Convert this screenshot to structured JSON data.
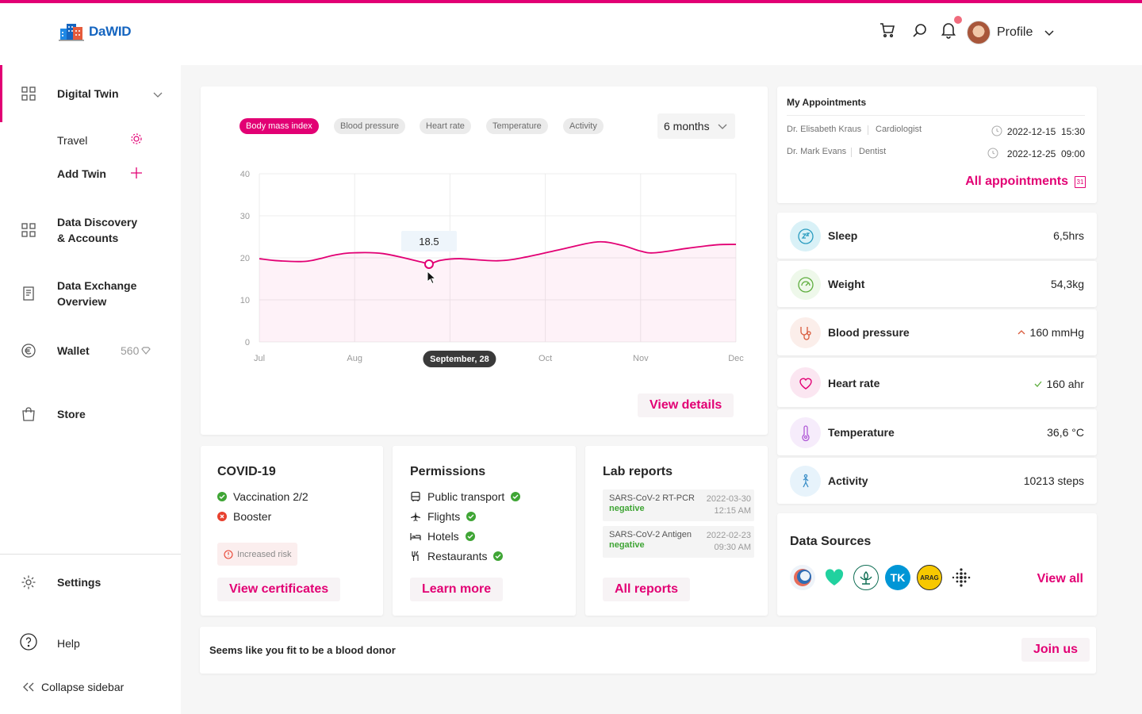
{
  "brand": {
    "logo_text": "DaWID",
    "accent": "#e20074"
  },
  "header": {
    "icons": [
      "cart-icon",
      "search-icon",
      "bell-icon"
    ],
    "profile_label": "Profile"
  },
  "sidebar": {
    "digital_twin": "Digital Twin",
    "travel": "Travel",
    "add_twin": "Add Twin",
    "data_discovery_1": "Data Discovery",
    "data_discovery_2": "& Accounts",
    "data_exchange_1": "Data Exchange",
    "data_exchange_2": "Overview",
    "wallet": "Wallet",
    "wallet_balance": "560",
    "store": "Store",
    "settings": "Settings",
    "help": "Help",
    "collapse": "Collapse sidebar"
  },
  "chart_card": {
    "tabs": [
      "Body mass index",
      "Blood pressure",
      "Heart rate",
      "Temperature",
      "Activity"
    ],
    "active_tab": "Body mass index",
    "range": "6 months",
    "tooltip_value": "18.5",
    "selected_x_label": "September, 28",
    "view_details": "View details"
  },
  "chart_data": {
    "type": "area",
    "title": "",
    "xlabel": "",
    "ylabel": "",
    "x_ticks": [
      "Jul",
      "Aug",
      "Sep",
      "Oct",
      "Nov",
      "Dec"
    ],
    "ylim": [
      0,
      40
    ],
    "y_ticks": [
      0,
      10,
      20,
      30,
      40
    ],
    "grid": true,
    "series": [
      {
        "x": [
          0,
          0.2,
          0.5,
          0.8,
          1.0,
          1.3,
          1.7,
          1.78,
          1.9,
          2.1,
          2.5,
          2.8,
          3.2,
          3.55,
          3.8,
          4.0,
          4.15,
          4.5,
          4.8,
          5.0
        ],
        "y": [
          19.8,
          19.3,
          19.2,
          20.7,
          21.2,
          21.0,
          19.0,
          18.5,
          19.4,
          19.8,
          19.3,
          20.2,
          22.2,
          23.8,
          23.0,
          21.6,
          21.2,
          22.3,
          23.1,
          23.2
        ],
        "color": "#e20074"
      }
    ],
    "highlight": {
      "x": 1.78,
      "y": 18.5
    }
  },
  "appointments": {
    "title": "My Appointments",
    "items": [
      {
        "doctor": "Dr. Elisabeth Kraus",
        "specialty": "Cardiologist",
        "datetime": "2022-12-15  15:30"
      },
      {
        "doctor": "Dr. Mark Evans",
        "specialty": "Dentist",
        "datetime": "2022-12-25  09:00"
      }
    ],
    "all_link": "All appointments",
    "calendar_day": "31"
  },
  "vitals": [
    {
      "label": "Sleep",
      "value": "6,5hrs",
      "icon": "sleep-icon",
      "trend": ""
    },
    {
      "label": "Weight",
      "value": "54,3kg",
      "icon": "scale-icon",
      "trend": ""
    },
    {
      "label": "Blood pressure",
      "value": "160 mmHg",
      "icon": "stethoscope-icon",
      "trend": "up"
    },
    {
      "label": "Heart rate",
      "value": "160 ahr",
      "icon": "heart-icon",
      "trend": "ok"
    },
    {
      "label": "Temperature",
      "value": "36,6 °C",
      "icon": "thermometer-icon",
      "trend": ""
    },
    {
      "label": "Activity",
      "value": "10213 steps",
      "icon": "walking-icon",
      "trend": ""
    }
  ],
  "covid": {
    "title": "COVID-19",
    "vaccination": "Vaccination 2/2",
    "booster": "Booster",
    "risk": "Increased risk",
    "button": "View certificates"
  },
  "permissions": {
    "title": "Permissions",
    "items": [
      "Public transport",
      "Flights",
      "Hotels",
      "Restaurants"
    ],
    "button": "Learn more"
  },
  "lab_reports": {
    "title": "Lab reports",
    "items": [
      {
        "name": "SARS-CoV-2 RT-PCR",
        "result": "negative",
        "date": "2022-03-30",
        "time": "12:15 AM"
      },
      {
        "name": "SARS-CoV-2 Antigen",
        "result": "negative",
        "date": "2022-02-23",
        "time": "09:30 AM"
      }
    ],
    "button": "All reports"
  },
  "data_sources": {
    "title": "Data Sources",
    "logos": [
      "source-logo-1",
      "source-logo-2",
      "source-logo-3",
      "TK",
      "ARAG",
      "source-logo-6"
    ],
    "view_all": "View all"
  },
  "donor": {
    "text": "Seems like you fit to be a blood donor",
    "button": "Join us"
  }
}
